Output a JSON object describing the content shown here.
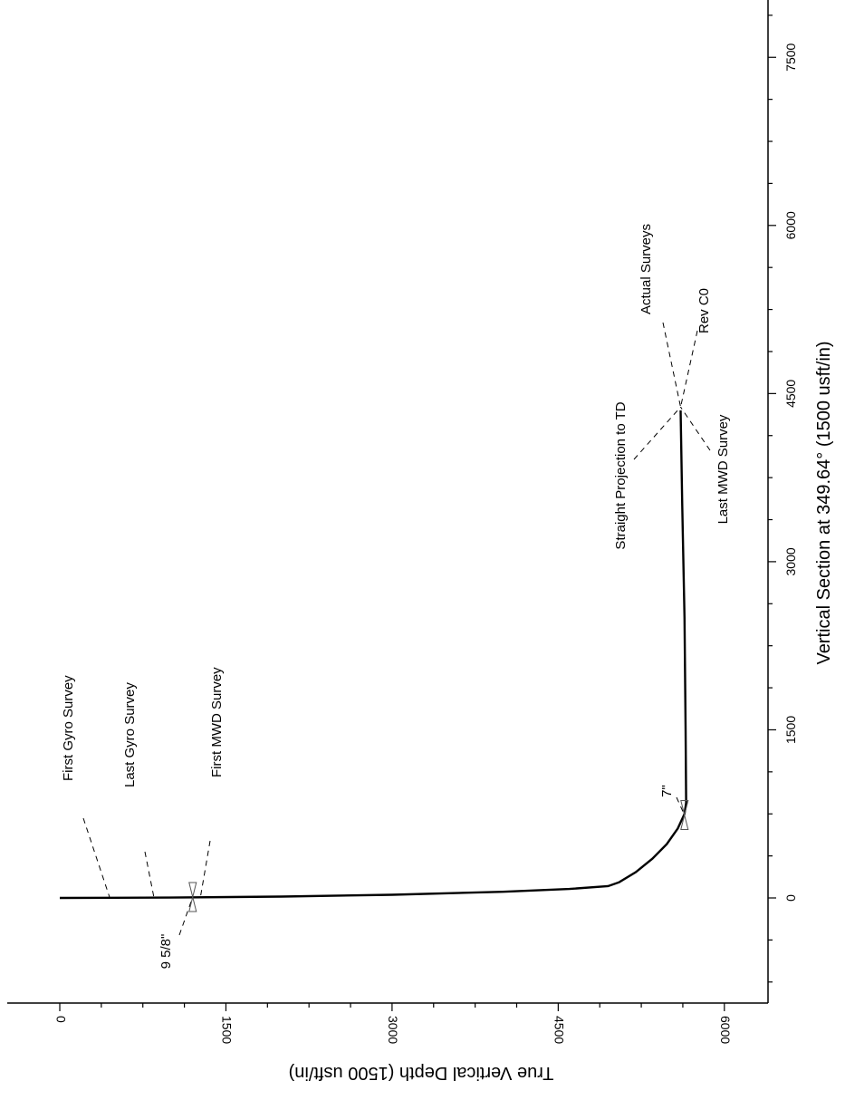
{
  "chart_data": {
    "type": "line",
    "xlabel": "True Vertical Depth (1500 usft/in)",
    "ylabel": "Vertical Section at 349.64° (1500 usft/in)",
    "x_axis": {
      "range": [
        -300,
        6300
      ],
      "ticks": [
        0,
        1500,
        3000,
        4500,
        6000
      ],
      "tick_labels": [
        "0",
        "1500",
        "3000",
        "4500",
        "6000"
      ],
      "minor_step": 375
    },
    "y_axis": {
      "range": [
        -1050,
        8050
      ],
      "ticks": [
        0,
        1500,
        3000,
        4500,
        6000,
        7500
      ],
      "tick_labels": [
        "0",
        "1500",
        "3000",
        "4500",
        "6000",
        "7500"
      ],
      "minor_step": 375
    },
    "series": [
      {
        "x": [
          0,
          1000,
          2000,
          3000,
          4000,
          4600,
          4950,
          5050,
          5200,
          5350,
          5480,
          5580,
          5640,
          5655,
          5650,
          5640,
          5620,
          5605
        ],
        "y": [
          0,
          3,
          12,
          28,
          55,
          80,
          105,
          140,
          230,
          350,
          480,
          620,
          750,
          850,
          1500,
          2500,
          3500,
          4350
        ]
      }
    ],
    "annotations": [
      {
        "label": "First Gyro Survey",
        "x": 450,
        "y": 5
      },
      {
        "label": "Last Gyro Survey",
        "x": 850,
        "y": 5
      },
      {
        "label": "First MWD Survey",
        "x": 1270,
        "y": 8
      },
      {
        "label": "9 5/8\"",
        "x": 1200,
        "y": 8
      },
      {
        "label": "7\"",
        "x": 5640,
        "y": 740
      },
      {
        "label": "Straight Projection to TD",
        "x": 5605,
        "y": 4380
      },
      {
        "label": "Actual Surveys",
        "x": 5605,
        "y": 4380
      },
      {
        "label": "Rev C0",
        "x": 5605,
        "y": 4380
      },
      {
        "label": "Last MWD Survey",
        "x": 5605,
        "y": 4380
      }
    ]
  }
}
